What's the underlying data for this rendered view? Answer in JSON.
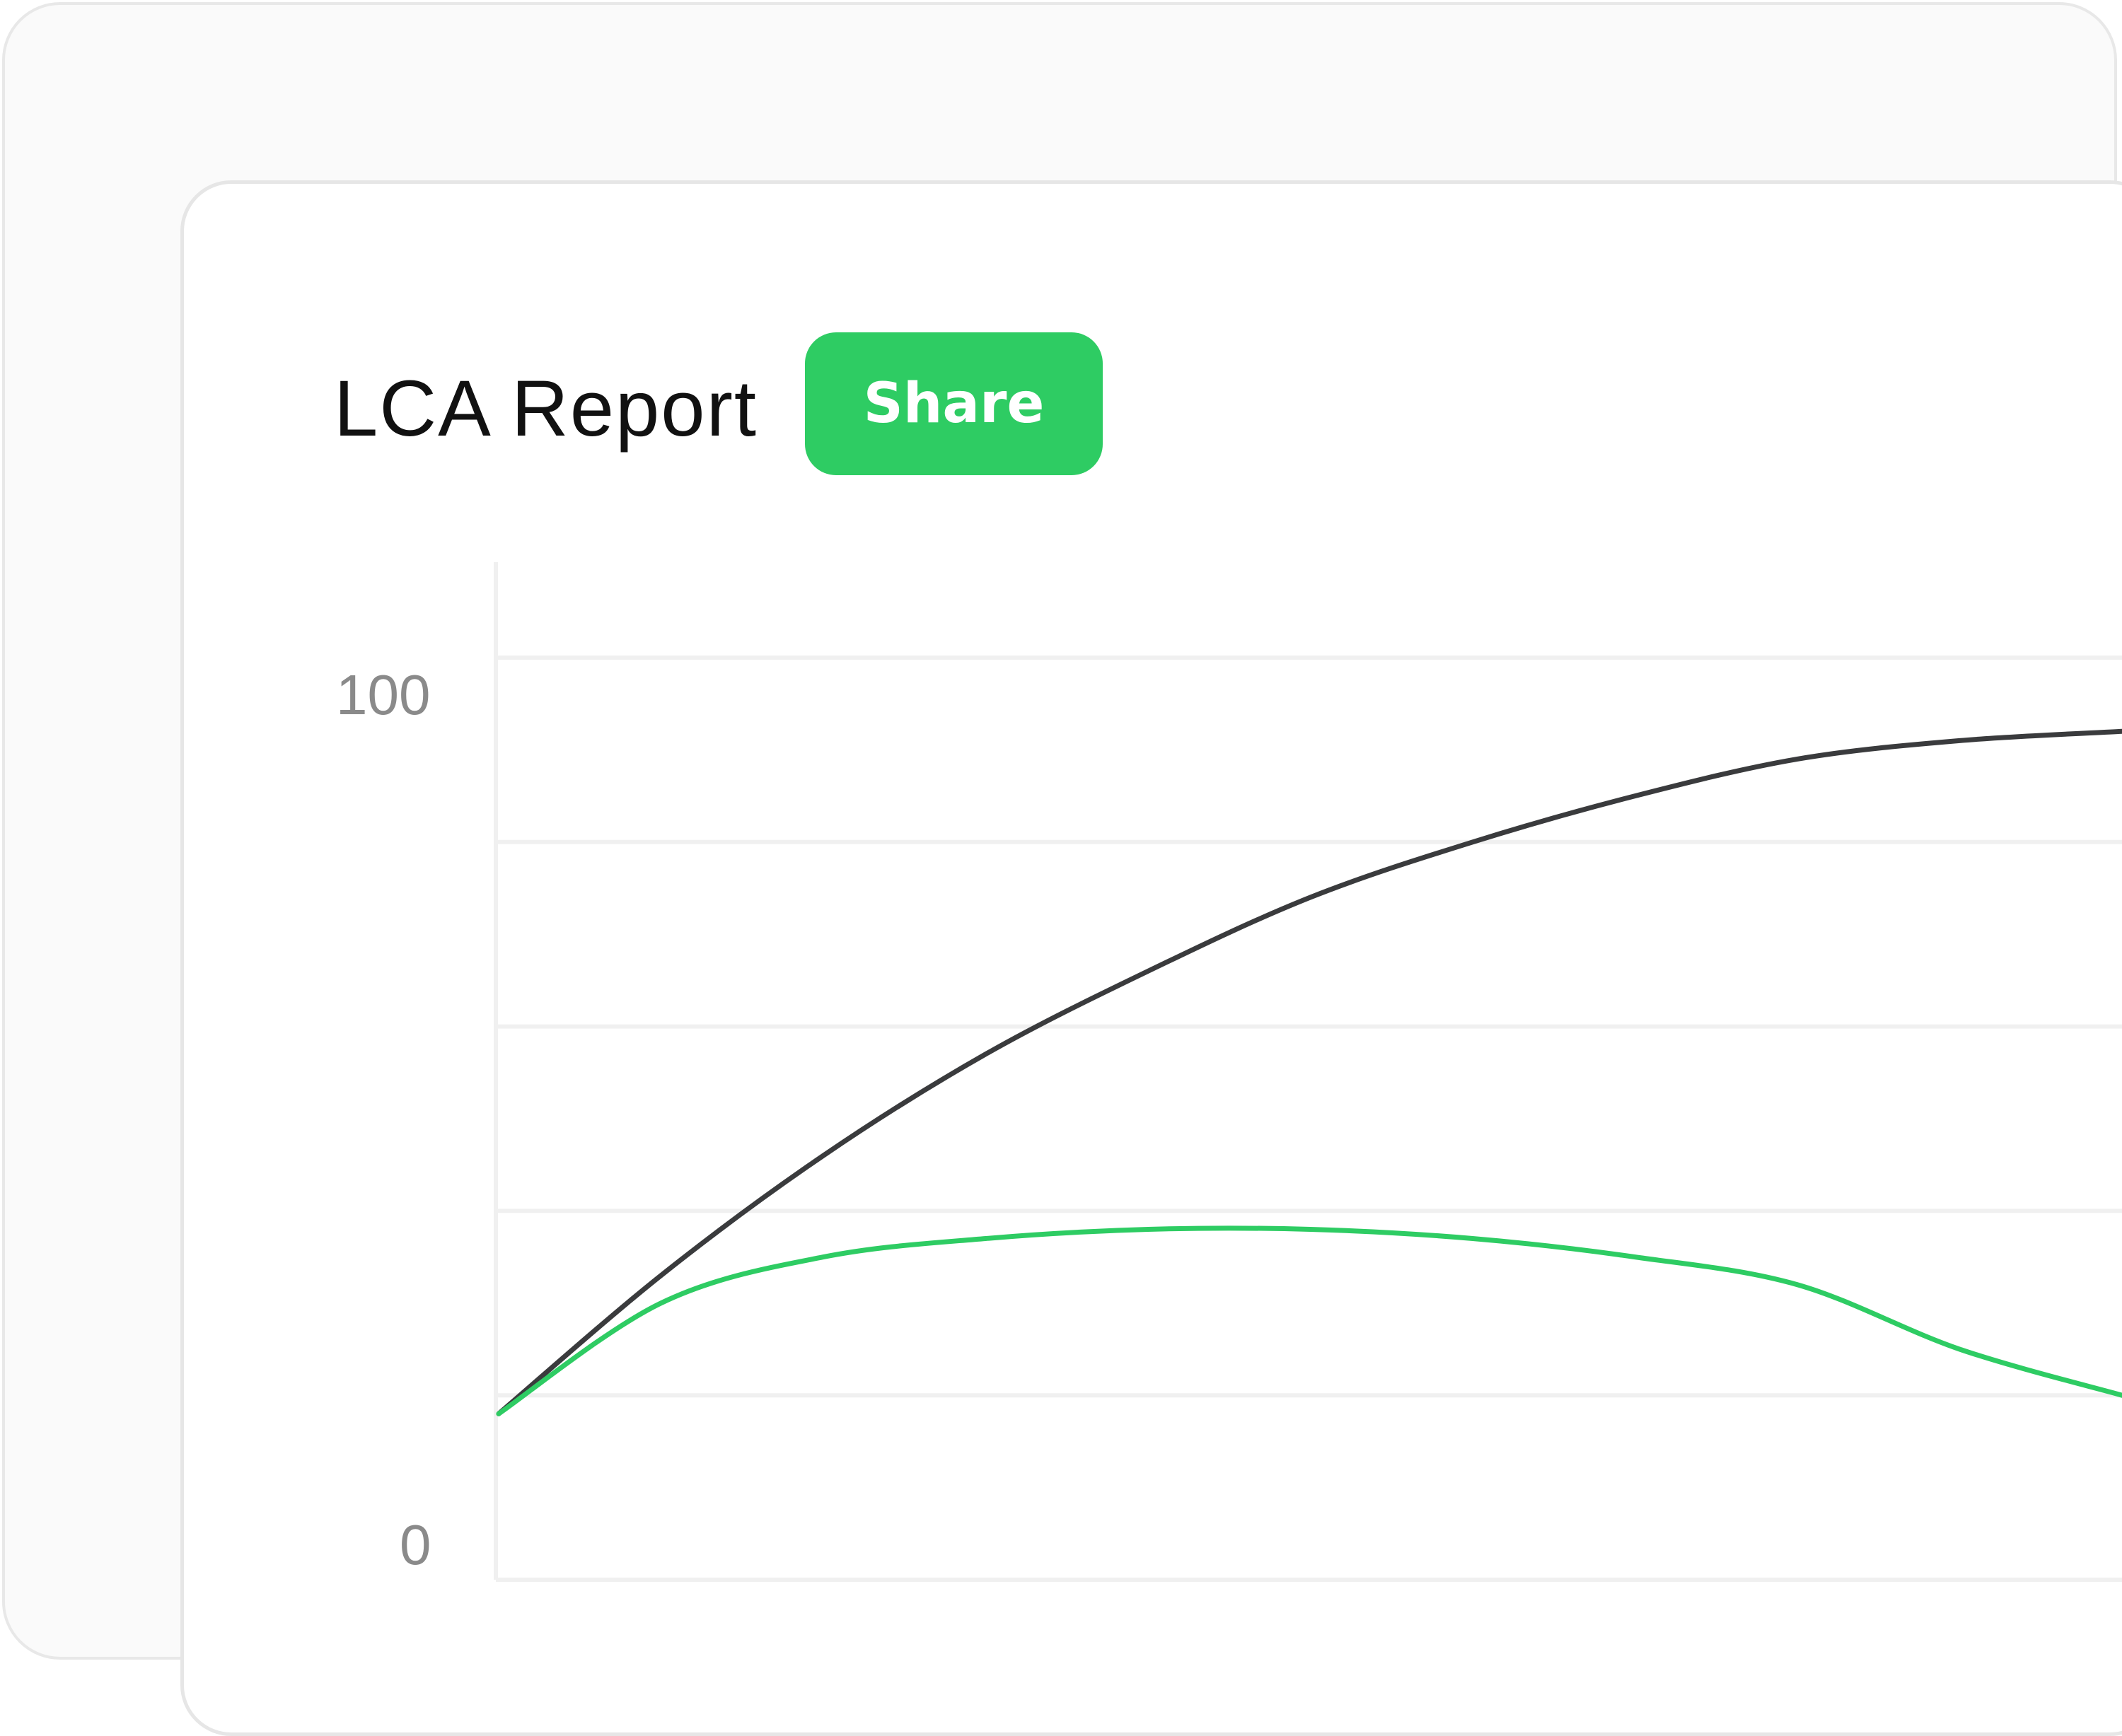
{
  "report": {
    "title": "LCA Report",
    "share_label": "Share"
  },
  "colors": {
    "accent": "#2ecc63",
    "baseline_line": "#3a3b3d",
    "gridline": "#f0f0f0",
    "axis_text": "#8a8a8a"
  },
  "chart_data": {
    "type": "line",
    "title": "",
    "xlabel": "",
    "ylabel": "",
    "ylim": [
      0,
      100
    ],
    "xlim": [
      0,
      1
    ],
    "y_tick_labels": [
      "0",
      "100"
    ],
    "grid": true,
    "series": [
      {
        "color": "#3a3b3d",
        "x": [
          0,
          0.1,
          0.2,
          0.3,
          0.4,
          0.5,
          0.6,
          0.7,
          0.8,
          0.9,
          1.0
        ],
        "y": [
          18,
          33,
          46,
          57,
          66,
          74,
          80,
          85,
          89,
          91,
          92
        ]
      },
      {
        "color": "#2ecc63",
        "x": [
          0,
          0.1,
          0.2,
          0.3,
          0.4,
          0.5,
          0.6,
          0.7,
          0.8,
          0.9,
          1.0
        ],
        "y": [
          18,
          30,
          35,
          37,
          38,
          38,
          37,
          35,
          32,
          25,
          20
        ]
      }
    ]
  }
}
